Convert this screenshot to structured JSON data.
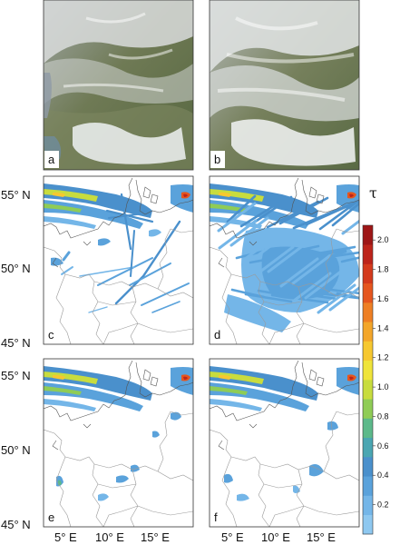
{
  "figure": {
    "panels": [
      {
        "id": "a",
        "kind": "satellite",
        "label": "a"
      },
      {
        "id": "b",
        "kind": "satellite",
        "label": "b"
      },
      {
        "id": "c",
        "kind": "map",
        "label": "c",
        "coverage": "sparse-streaks"
      },
      {
        "id": "d",
        "kind": "map",
        "label": "d",
        "coverage": "dense-streaks"
      },
      {
        "id": "e",
        "kind": "map",
        "label": "e",
        "coverage": "minimal"
      },
      {
        "id": "f",
        "kind": "map",
        "label": "f",
        "coverage": "minimal"
      }
    ],
    "lat_labels": [
      "55° N",
      "50° N",
      "45° N",
      "55° N",
      "50° N",
      "45° N"
    ],
    "lon_labels": [
      "5° E",
      "10° E",
      "15° E",
      "5° E",
      "10° E",
      "15° E"
    ],
    "colorbar": {
      "title": "τ",
      "ticks": [
        "2.0",
        "1.8",
        "1.6",
        "1.4",
        "1.2",
        "1.0",
        "0.8",
        "0.6",
        "0.4",
        "0.2"
      ],
      "range": [
        0.0,
        2.1
      ],
      "colors": [
        "#8ec8f0",
        "#74b6e8",
        "#5aa2db",
        "#4a90cc",
        "#4aa6b2",
        "#5cb98a",
        "#8fcc56",
        "#c8dc3e",
        "#efe43a",
        "#f6c830",
        "#f3a62a",
        "#ee7f24",
        "#e5561e",
        "#d43a1c",
        "#bd241a",
        "#9e1616"
      ]
    }
  }
}
